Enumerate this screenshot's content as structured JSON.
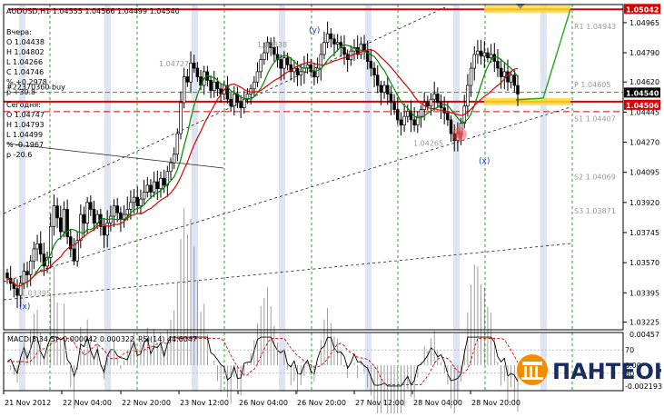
{
  "chart_data": {
    "type": "candlestick",
    "symbol_header": "AUDUSD,H1  1.04555 1.04566 1.04499 1.04540",
    "price_axis": {
      "ylim": [
        1.0318,
        1.0507
      ],
      "ticks": [
        "1.04965",
        "1.04790",
        "1.04620",
        "1.04445",
        "1.04270",
        "1.04095",
        "1.03920",
        "1.03745",
        "1.03570",
        "1.03395",
        "1.03225"
      ],
      "tick_values": [
        1.04965,
        1.0479,
        1.0462,
        1.04445,
        1.0427,
        1.04095,
        1.0392,
        1.03745,
        1.0357,
        1.03395,
        1.03225
      ]
    },
    "price_badges": [
      {
        "text": "1.05042",
        "value": 1.05042,
        "color": "#dd0000"
      },
      {
        "text": "1.04540",
        "value": 1.0454,
        "color": "#000000"
      },
      {
        "text": "1.04506",
        "value": 1.04506,
        "color": "#dd0000"
      }
    ],
    "time_axis": [
      "21 Nov 2012",
      "22 Nov 04:00",
      "22 Nov 20:00",
      "23 Nov 12:00",
      "26 Nov 04:00",
      "26 Nov 20:00",
      "27 Nov 12:00",
      "28 Nov 04:00",
      "28 Nov 20:00"
    ],
    "yesterday": {
      "title": "Вчера:",
      "O": "O 1.04438",
      "H": "H 1.04802",
      "L": "L 1.04266",
      "C": "C 1.04746",
      "pct": "% +0.2978",
      "pips": "p +30.8"
    },
    "today": {
      "title": "Сегодня:",
      "O": "O 1.04747",
      "H": "H 1.04793",
      "L": "L 1.04499",
      "pct": "% -0.1967",
      "pips": "p -20.6"
    },
    "order_label": "#22370360 buy",
    "level_labels": [
      {
        "text": "R1 1.04943",
        "value": 1.04943
      },
      {
        "text": "P 1.04605",
        "value": 1.04605
      },
      {
        "text": "S1 1.04407",
        "value": 1.04407
      },
      {
        "text": "S2 1.04069",
        "value": 1.04069
      },
      {
        "text": "S3 1.03871",
        "value": 1.03871
      }
    ],
    "price_labels": [
      {
        "text": "1.04838",
        "value": 1.04838
      },
      {
        "text": "1.04727",
        "value": 1.04727
      },
      {
        "text": "1.04265",
        "value": 1.04265
      },
      {
        "text": "1.03395",
        "value": 1.03395
      }
    ],
    "wave_labels": [
      "(y)",
      "(x)",
      "(x)"
    ],
    "candles_close": [
      1.0348,
      1.0345,
      1.0342,
      1.0338,
      1.0345,
      1.0352,
      1.035,
      1.0358,
      1.0365,
      1.0368,
      1.0362,
      1.0355,
      1.036,
      1.0378,
      1.039,
      1.0383,
      1.0375,
      1.0388,
      1.0372,
      1.0365,
      1.0358,
      1.037,
      1.0385,
      1.038,
      1.0392,
      1.0388,
      1.038,
      1.0385,
      1.0378,
      1.0373,
      1.038,
      1.0384,
      1.039,
      1.0386,
      1.0382,
      1.0385,
      1.0388,
      1.0392,
      1.0395,
      1.039,
      1.0394,
      1.0398,
      1.0402,
      1.0398,
      1.0404,
      1.04,
      1.0406,
      1.0402,
      1.041,
      1.0415,
      1.042,
      1.0432,
      1.045,
      1.0465,
      1.0462,
      1.0473,
      1.047,
      1.0465,
      1.046,
      1.0468,
      1.0463,
      1.0457,
      1.0462,
      1.0458,
      1.0455,
      1.046,
      1.0452,
      1.0448,
      1.0455,
      1.045,
      1.0447,
      1.0452,
      1.0455,
      1.0458,
      1.0462,
      1.0468,
      1.0475,
      1.0479,
      1.0485,
      1.0482,
      1.0478,
      1.0475,
      1.047,
      1.0476,
      1.0472,
      1.0468,
      1.047,
      1.0466,
      1.0468,
      1.047,
      1.0472,
      1.0468,
      1.0465,
      1.047,
      1.0478,
      1.0485,
      1.049,
      1.0487,
      1.0484,
      1.0485,
      1.0482,
      1.0478,
      1.0475,
      1.048,
      1.0482,
      1.0478,
      1.0484,
      1.048,
      1.0474,
      1.047,
      1.0466,
      1.046,
      1.0456,
      1.046,
      1.0455,
      1.045,
      1.0446,
      1.044,
      1.0437,
      1.0442,
      1.0445,
      1.044,
      1.0437,
      1.0442,
      1.0446,
      1.045,
      1.0448,
      1.0452,
      1.0455,
      1.045,
      1.0447,
      1.0444,
      1.044,
      1.0432,
      1.0428,
      1.0432,
      1.0438,
      1.0448,
      1.046,
      1.047,
      1.0478,
      1.048,
      1.0477,
      1.0479,
      1.0476,
      1.0478,
      1.0474,
      1.047,
      1.0465,
      1.0468,
      1.0462,
      1.0466,
      1.046,
      1.0455
    ],
    "macd": {
      "label": "MACD(5,34,5) -0.000042 0.000322",
      "ticks": [
        "0.00457",
        "0.00",
        "-0.002193"
      ]
    },
    "rsi": {
      "label": "RSI(14) 44.6047",
      "ticks": [
        "70",
        "30"
      ]
    }
  },
  "brand": {
    "name": "ПАНТЕОН"
  }
}
